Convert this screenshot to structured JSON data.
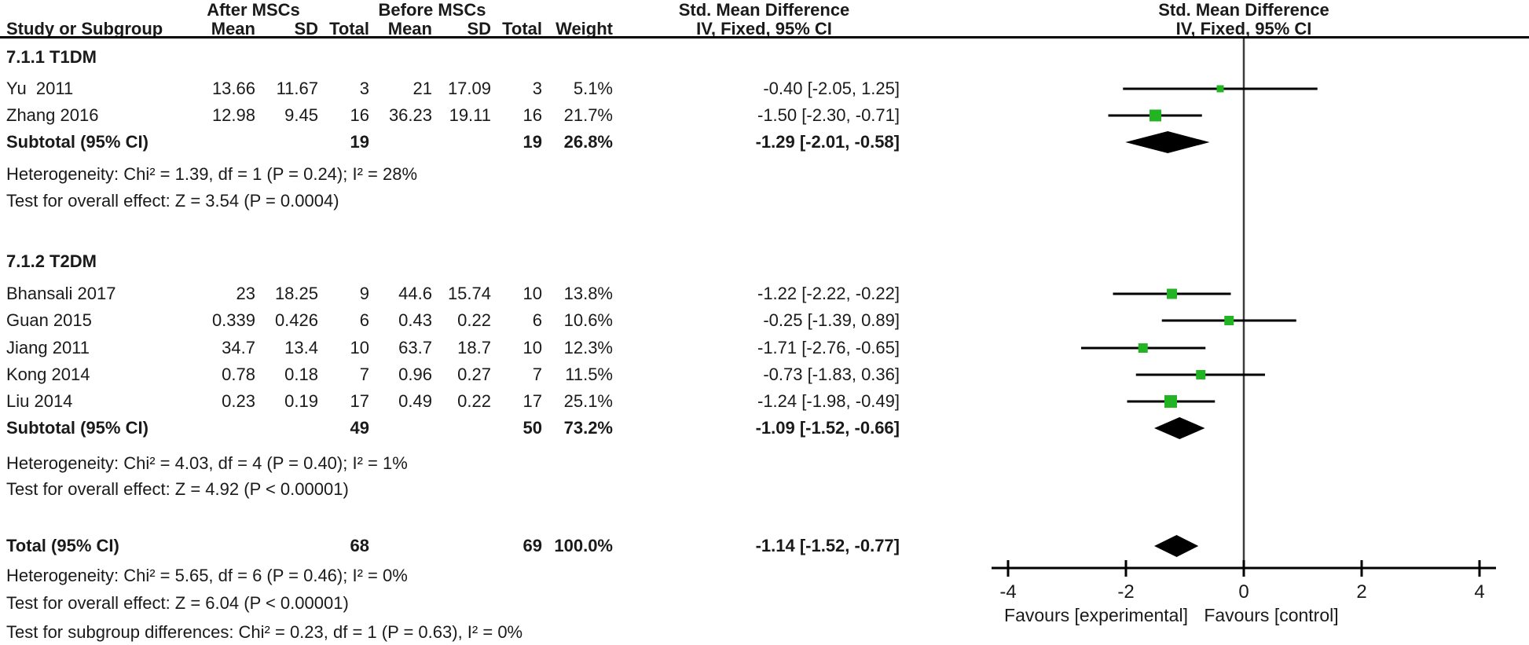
{
  "header": {
    "group_after": "After MSCs",
    "group_before": "Before MSCs",
    "smd_table": "Std. Mean Difference",
    "smd_plot": "Std. Mean Difference",
    "method_table": "IV, Fixed, 95% CI",
    "method_plot": "IV, Fixed, 95% CI",
    "col_study": "Study or Subgroup",
    "col_mean_after": "Mean",
    "col_sd_after": "SD",
    "col_total_after": "Total",
    "col_mean_before": "Mean",
    "col_sd_before": "SD",
    "col_total_before": "Total",
    "col_weight": "Weight"
  },
  "chart_data": {
    "type": "forest",
    "effect_measure": "Std. Mean Difference",
    "method": "IV, Fixed, 95% CI",
    "axis": {
      "min": -4,
      "max": 4,
      "ticks": [
        "-4",
        "-2",
        "0",
        "2",
        "4"
      ],
      "tick_values": [
        -4,
        -2,
        0,
        2,
        4
      ],
      "favours_left": "Favours [experimental]",
      "favours_right": "Favours [control]"
    },
    "colors": {
      "square": "#22b422",
      "diamond": "#000000",
      "ci_line": "#000000",
      "zero_line": "#3c3c3c",
      "axis": "#000000"
    },
    "sections": [
      {
        "label": "7.1.1 T1DM",
        "studies": [
          {
            "study": "Yu  2011",
            "mean1": "13.66",
            "sd1": "11.67",
            "total1": "3",
            "mean2": "21",
            "sd2": "17.09",
            "total2": "3",
            "weight": "5.1%",
            "weight_pct": 5.1,
            "ci_text": "-0.40 [-2.05, 1.25]",
            "est": -0.4,
            "lo": -2.05,
            "hi": 1.25
          },
          {
            "study": "Zhang 2016",
            "mean1": "12.98",
            "sd1": "9.45",
            "total1": "16",
            "mean2": "36.23",
            "sd2": "19.11",
            "total2": "16",
            "weight": "21.7%",
            "weight_pct": 21.7,
            "ci_text": "-1.50 [-2.30, -0.71]",
            "est": -1.5,
            "lo": -2.3,
            "hi": -0.71
          }
        ],
        "subtotal": {
          "label": "Subtotal (95% CI)",
          "total1": "19",
          "total2": "19",
          "weight": "26.8%",
          "ci_text": "-1.29 [-2.01, -0.58]",
          "est": -1.29,
          "lo": -2.01,
          "hi": -0.58
        },
        "heterogeneity": "Heterogeneity: Chi² = 1.39, df = 1 (P = 0.24); I² = 28%",
        "overall_effect": "Test for overall effect: Z = 3.54 (P = 0.0004)"
      },
      {
        "label": "7.1.2 T2DM",
        "studies": [
          {
            "study": "Bhansali 2017",
            "mean1": "23",
            "sd1": "18.25",
            "total1": "9",
            "mean2": "44.6",
            "sd2": "15.74",
            "total2": "10",
            "weight": "13.8%",
            "weight_pct": 13.8,
            "ci_text": "-1.22 [-2.22, -0.22]",
            "est": -1.22,
            "lo": -2.22,
            "hi": -0.22
          },
          {
            "study": "Guan 2015",
            "mean1": "0.339",
            "sd1": "0.426",
            "total1": "6",
            "mean2": "0.43",
            "sd2": "0.22",
            "total2": "6",
            "weight": "10.6%",
            "weight_pct": 10.6,
            "ci_text": "-0.25 [-1.39, 0.89]",
            "est": -0.25,
            "lo": -1.39,
            "hi": 0.89
          },
          {
            "study": "Jiang 2011",
            "mean1": "34.7",
            "sd1": "13.4",
            "total1": "10",
            "mean2": "63.7",
            "sd2": "18.7",
            "total2": "10",
            "weight": "12.3%",
            "weight_pct": 12.3,
            "ci_text": "-1.71 [-2.76, -0.65]",
            "est": -1.71,
            "lo": -2.76,
            "hi": -0.65
          },
          {
            "study": "Kong 2014",
            "mean1": "0.78",
            "sd1": "0.18",
            "total1": "7",
            "mean2": "0.96",
            "sd2": "0.27",
            "total2": "7",
            "weight": "11.5%",
            "weight_pct": 11.5,
            "ci_text": "-0.73 [-1.83, 0.36]",
            "est": -0.73,
            "lo": -1.83,
            "hi": 0.36
          },
          {
            "study": "Liu 2014",
            "mean1": "0.23",
            "sd1": "0.19",
            "total1": "17",
            "mean2": "0.49",
            "sd2": "0.22",
            "total2": "17",
            "weight": "25.1%",
            "weight_pct": 25.1,
            "ci_text": "-1.24 [-1.98, -0.49]",
            "est": -1.24,
            "lo": -1.98,
            "hi": -0.49
          }
        ],
        "subtotal": {
          "label": "Subtotal (95% CI)",
          "total1": "49",
          "total2": "50",
          "weight": "73.2%",
          "ci_text": "-1.09 [-1.52, -0.66]",
          "est": -1.09,
          "lo": -1.52,
          "hi": -0.66
        },
        "heterogeneity": "Heterogeneity: Chi² = 4.03, df = 4 (P = 0.40); I² = 1%",
        "overall_effect": "Test for overall effect: Z = 4.92 (P < 0.00001)"
      }
    ],
    "total": {
      "label": "Total (95% CI)",
      "total1": "68",
      "total2": "69",
      "weight": "100.0%",
      "ci_text": "-1.14 [-1.52, -0.77]",
      "est": -1.14,
      "lo": -1.52,
      "hi": -0.77
    },
    "total_heterogeneity": "Heterogeneity: Chi² = 5.65, df = 6 (P = 0.46); I² = 0%",
    "total_overall_effect": "Test for overall effect: Z = 6.04 (P < 0.00001)",
    "subgroup_differences": "Test for subgroup differences: Chi² = 0.23, df = 1 (P = 0.63), I² = 0%"
  }
}
